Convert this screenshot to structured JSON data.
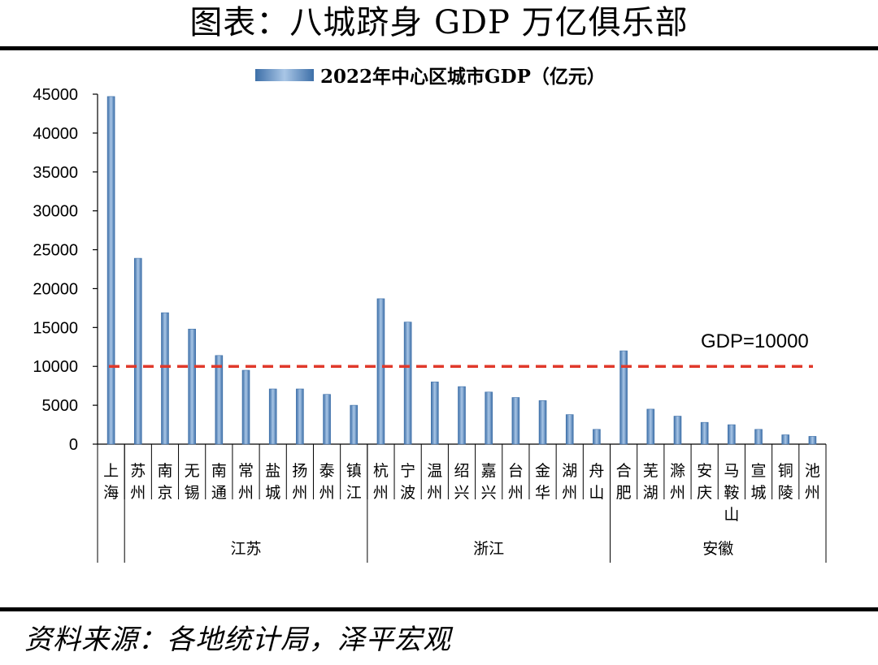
{
  "figure_title": "图表：八城跻身 GDP 万亿俱乐部",
  "source_note": "资料来源：各地统计局，泽平宏观",
  "colors": {
    "bar": "#5b8fc7",
    "bar_edge": "#3d6fa8",
    "reference": "#e0392b",
    "axis": "#000000"
  },
  "chart_data": {
    "type": "bar",
    "legend": [
      "2022年中心区城市GDP（亿元）"
    ],
    "legend_position": "top",
    "grid": false,
    "ylim": [
      0,
      45000
    ],
    "yticks": [
      0,
      5000,
      10000,
      15000,
      20000,
      25000,
      30000,
      35000,
      40000,
      45000
    ],
    "categories": [
      "上海",
      "苏州",
      "南京",
      "无锡",
      "南通",
      "常州",
      "盐城",
      "扬州",
      "泰州",
      "镇江",
      "杭州",
      "宁波",
      "温州",
      "绍兴",
      "嘉兴",
      "台州",
      "金华",
      "湖州",
      "舟山",
      "合肥",
      "芜湖",
      "滁州",
      "安庆",
      "马鞍山",
      "宣城",
      "铜陵",
      "池州"
    ],
    "values": [
      44700,
      23900,
      16900,
      14800,
      11400,
      9500,
      7100,
      7100,
      6400,
      5000,
      18700,
      15700,
      8000,
      7400,
      6700,
      6000,
      5600,
      3800,
      1900,
      12000,
      4500,
      3600,
      2800,
      2500,
      1900,
      1200,
      1000
    ],
    "groups": [
      {
        "name": "江苏",
        "start": 1,
        "end": 9
      },
      {
        "name": "浙江",
        "start": 10,
        "end": 18
      },
      {
        "name": "安徽",
        "start": 19,
        "end": 26
      }
    ],
    "reference_line": {
      "value": 10000,
      "label": "GDP=10000"
    }
  }
}
